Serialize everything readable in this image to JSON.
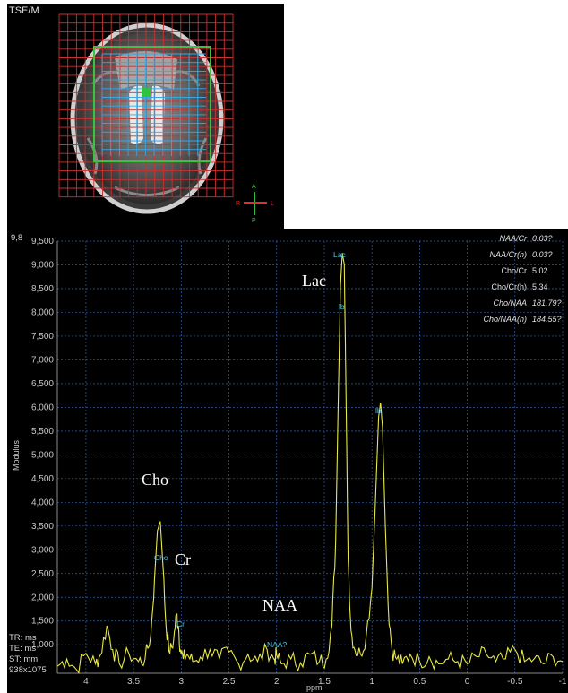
{
  "mri": {
    "title": "TSE/M",
    "orientation": {
      "top": "A",
      "bottom": "P",
      "left": "R",
      "right": "L"
    }
  },
  "spectrum": {
    "corner_label": "9,8",
    "ylabel": "Modulus",
    "xlabel": "ppm",
    "scan_params": [
      "TR: ms",
      "TE: ms",
      "ST: mm",
      "938x1075"
    ],
    "ratios": [
      {
        "label": "NAA/Cr",
        "value": "0.03?"
      },
      {
        "label": "NAA/Cr(h)",
        "value": "0.03?"
      },
      {
        "label": "Cho/Cr",
        "value": "5.02"
      },
      {
        "label": "Cho/Cr(h)",
        "value": "5.34"
      },
      {
        "label": "Cho/NAA",
        "value": "181.79?"
      },
      {
        "label": "Cho/NAA(h)",
        "value": "184.55?"
      }
    ],
    "peak_annotations": [
      {
        "name": "Cho",
        "tag": "Cho"
      },
      {
        "name": "Cr",
        "tag": "Cr"
      },
      {
        "name": "NAA",
        "tag": "NAA?"
      },
      {
        "name": "Lac",
        "tag": "Lac"
      }
    ],
    "extra_tags": [
      "lb",
      "lb"
    ],
    "colors": {
      "trace": "#e8e84a",
      "grid": "#2f5fb0",
      "tag": "#49c8e8"
    }
  },
  "chart_data": {
    "type": "line",
    "xlabel": "ppm",
    "ylabel": "Modulus",
    "x_reversed": true,
    "xlim": [
      4.3,
      -1.0
    ],
    "ylim": [
      400,
      9500
    ],
    "x_ticks": [
      "4",
      "3.5",
      "3",
      "2.5",
      "2",
      "1.5",
      "1",
      "0.5",
      "0",
      "-0.5",
      "-1"
    ],
    "y_ticks": [
      "1,000",
      "1,500",
      "2,000",
      "2,500",
      "3,000",
      "3,500",
      "4,000",
      "4,500",
      "5,000",
      "5,500",
      "6,000",
      "6,500",
      "7,000",
      "7,500",
      "8,000",
      "8,500",
      "9,000",
      "9,500"
    ],
    "grid": true,
    "series": [
      {
        "x": [
          4.3,
          4.2,
          4.1,
          4.0,
          3.9,
          3.85,
          3.78,
          3.72,
          3.65,
          3.55,
          3.45,
          3.38,
          3.32,
          3.28,
          3.25,
          3.22,
          3.19,
          3.16,
          3.12,
          3.08,
          3.05,
          3.03,
          3.01,
          2.98,
          2.94,
          2.88,
          2.8,
          2.7,
          2.6,
          2.5,
          2.4,
          2.3,
          2.2,
          2.1,
          2.03,
          2.0,
          1.95,
          1.85,
          1.75,
          1.65,
          1.55,
          1.48,
          1.42,
          1.38,
          1.35,
          1.33,
          1.31,
          1.29,
          1.27,
          1.25,
          1.22,
          1.18,
          1.12,
          1.06,
          1.0,
          0.96,
          0.93,
          0.91,
          0.89,
          0.86,
          0.83,
          0.79,
          0.74,
          0.68,
          0.6,
          0.5,
          0.4,
          0.3,
          0.2,
          0.1,
          0.0,
          -0.1,
          -0.2,
          -0.3,
          -0.4,
          -0.5,
          -0.6,
          -0.7,
          -0.8,
          -0.9,
          -1.0
        ],
        "values": [
          550,
          700,
          480,
          820,
          600,
          780,
          1400,
          900,
          600,
          820,
          650,
          700,
          1200,
          2400,
          3400,
          3600,
          2600,
          1400,
          820,
          1100,
          1650,
          1400,
          900,
          700,
          800,
          650,
          740,
          900,
          700,
          850,
          600,
          800,
          650,
          900,
          700,
          780,
          600,
          700,
          620,
          800,
          650,
          700,
          1400,
          3200,
          6500,
          8600,
          9250,
          9000,
          6000,
          2800,
          1300,
          900,
          800,
          1200,
          2200,
          4200,
          5800,
          6100,
          5600,
          3500,
          1800,
          900,
          700,
          600,
          800,
          650,
          750,
          600,
          700,
          650,
          600,
          750,
          800,
          650,
          700,
          900,
          650,
          700,
          600,
          750,
          650
        ]
      }
    ]
  }
}
